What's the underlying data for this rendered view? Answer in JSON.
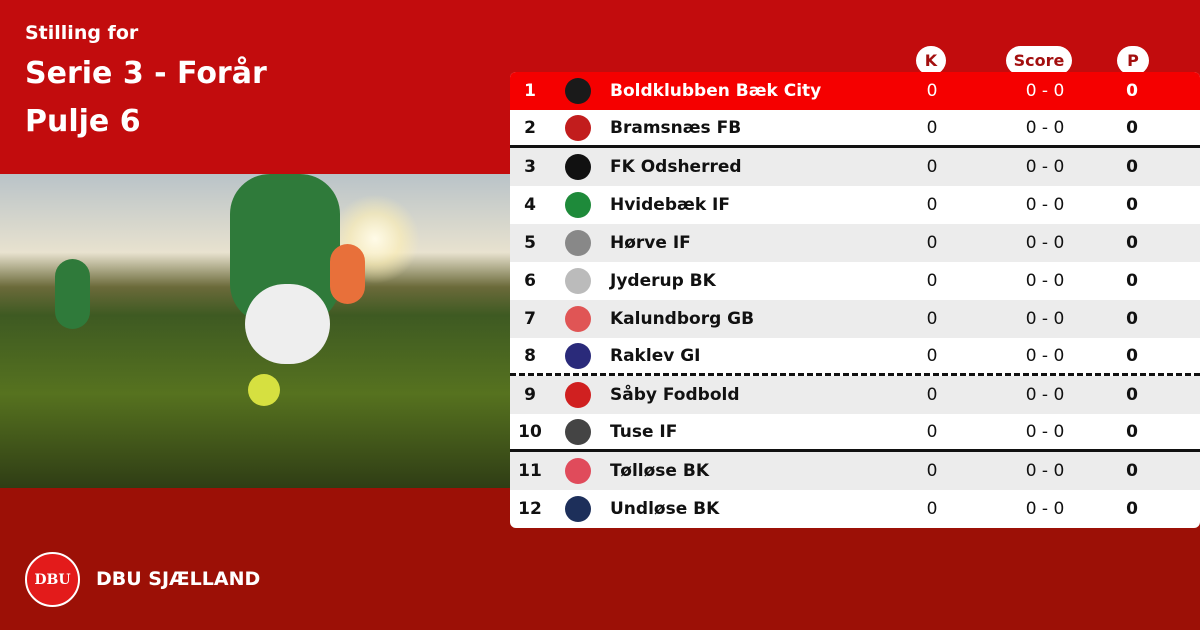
{
  "header": {
    "subtitle": "Stilling for",
    "title": "Serie 3 - Forår",
    "pool": "Pulje 6"
  },
  "columns": {
    "k": "K",
    "score": "Score",
    "p": "P"
  },
  "teams": [
    {
      "pos": "1",
      "name": "Boldklubben Bæk City",
      "k": "0",
      "score": "0 - 0",
      "p": "0",
      "logo_color": "#1a1a1a"
    },
    {
      "pos": "2",
      "name": "Bramsnæs FB",
      "k": "0",
      "score": "0 - 0",
      "p": "0",
      "logo_color": "#c21d1d"
    },
    {
      "pos": "3",
      "name": "FK Odsherred",
      "k": "0",
      "score": "0 - 0",
      "p": "0",
      "logo_color": "#111111"
    },
    {
      "pos": "4",
      "name": "Hvidebæk IF",
      "k": "0",
      "score": "0 - 0",
      "p": "0",
      "logo_color": "#1e8a3a"
    },
    {
      "pos": "5",
      "name": "Hørve IF",
      "k": "0",
      "score": "0 - 0",
      "p": "0",
      "logo_color": "#888888"
    },
    {
      "pos": "6",
      "name": "Jyderup BK",
      "k": "0",
      "score": "0 - 0",
      "p": "0",
      "logo_color": "#bbbbbb"
    },
    {
      "pos": "7",
      "name": "Kalundborg GB",
      "k": "0",
      "score": "0 - 0",
      "p": "0",
      "logo_color": "#e05555"
    },
    {
      "pos": "8",
      "name": "Raklev GI",
      "k": "0",
      "score": "0 - 0",
      "p": "0",
      "logo_color": "#2a2a7a"
    },
    {
      "pos": "9",
      "name": "Såby Fodbold",
      "k": "0",
      "score": "0 - 0",
      "p": "0",
      "logo_color": "#d02020"
    },
    {
      "pos": "10",
      "name": "Tuse IF",
      "k": "0",
      "score": "0 - 0",
      "p": "0",
      "logo_color": "#444444"
    },
    {
      "pos": "11",
      "name": "Tølløse BK",
      "k": "0",
      "score": "0 - 0",
      "p": "0",
      "logo_color": "#e04b5b"
    },
    {
      "pos": "12",
      "name": "Undløse BK",
      "k": "0",
      "score": "0 - 0",
      "p": "0",
      "logo_color": "#1d2f5a"
    }
  ],
  "footer": {
    "brand": "DBU SJÆLLAND",
    "logo_text": "DBU"
  },
  "colors": {
    "background": "#c20c0d",
    "footer": "#9c1006",
    "leader_row": "#f50000"
  }
}
